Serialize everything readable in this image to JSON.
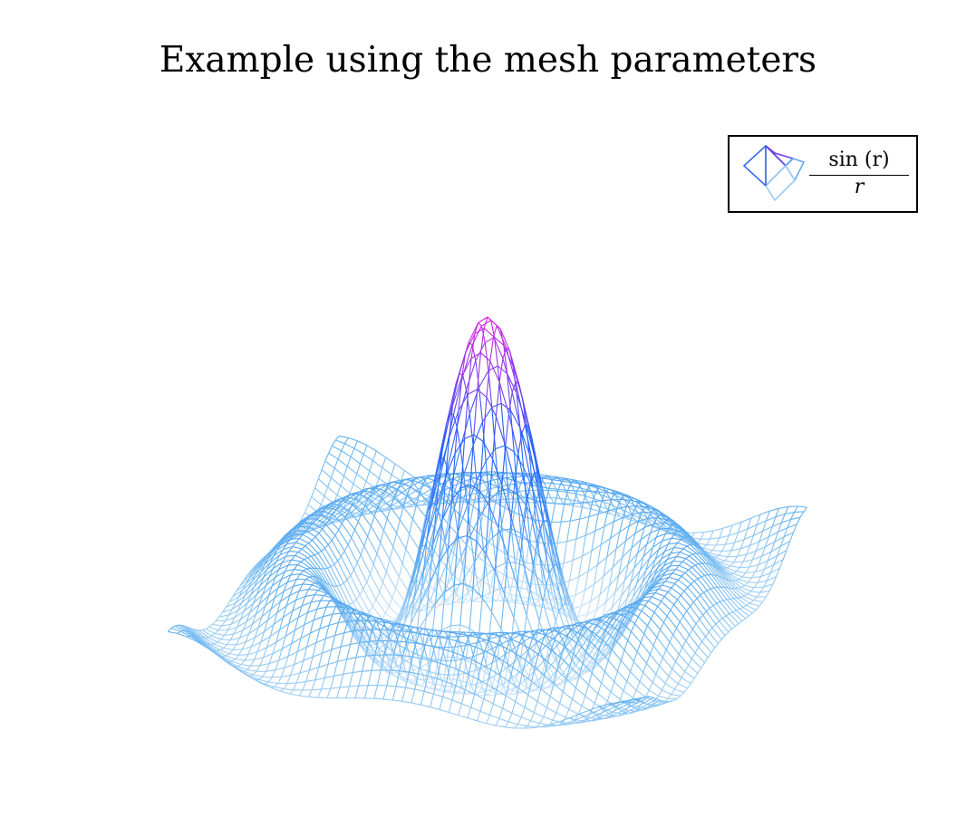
{
  "title": "Example using the mesh parameters",
  "legend": {
    "numerator": "sin (r)",
    "denominator": "r"
  },
  "colors": {
    "top": "#e020e0",
    "middle": "#2060ff",
    "lower": "#60b0f0",
    "bottom": "#cfe6fb"
  },
  "chart_data": {
    "type": "surface",
    "style": "mesh",
    "function": "sin(r)/r",
    "legend_entries": [
      "sin (r) / r"
    ],
    "x_range": [
      -10,
      10
    ],
    "y_range": [
      -10,
      10
    ],
    "z_range": [
      -0.22,
      1.0
    ],
    "mesh_samples": 50,
    "colormap": [
      "#cfe6fb",
      "#60b0f0",
      "#2060ff",
      "#e020e0"
    ],
    "axes_visible": false,
    "grid": false,
    "legend_position": "top-right"
  }
}
